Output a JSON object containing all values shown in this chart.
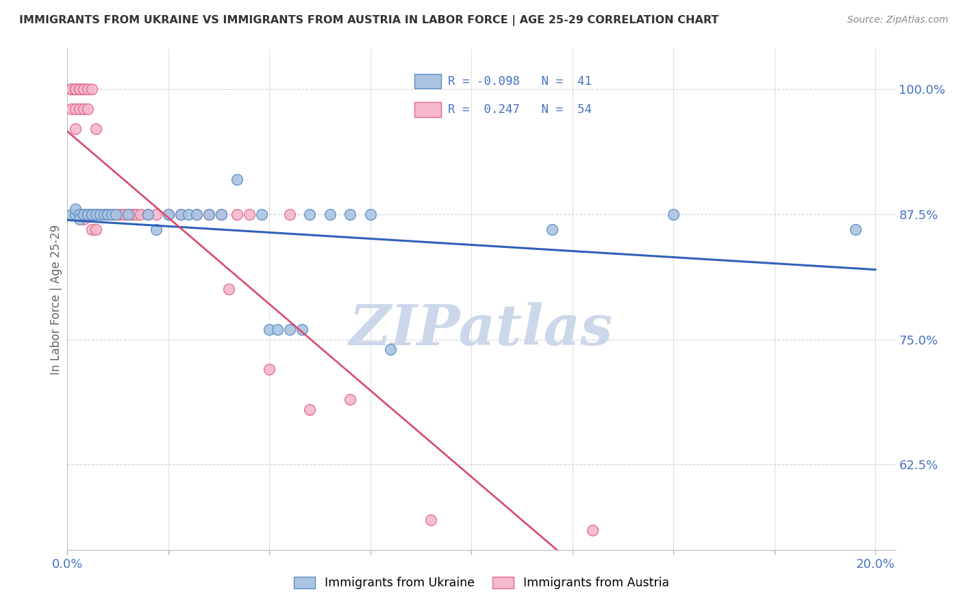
{
  "title": "IMMIGRANTS FROM UKRAINE VS IMMIGRANTS FROM AUSTRIA IN LABOR FORCE | AGE 25-29 CORRELATION CHART",
  "source": "Source: ZipAtlas.com",
  "ylabel": "In Labor Force | Age 25-29",
  "xlim": [
    0.0,
    0.205
  ],
  "ylim": [
    0.54,
    1.04
  ],
  "yticks": [
    0.625,
    0.75,
    0.875,
    1.0
  ],
  "ytick_labels": [
    "62.5%",
    "75.0%",
    "87.5%",
    "100.0%"
  ],
  "xticks": [
    0.0,
    0.025,
    0.05,
    0.075,
    0.1,
    0.125,
    0.15,
    0.175,
    0.2
  ],
  "xtick_labels": [
    "0.0%",
    "",
    "",
    "",
    "",
    "",
    "",
    "",
    "20.0%"
  ],
  "ukraine_color": "#aac4e2",
  "ukraine_edge": "#5b8ec4",
  "austria_color": "#f5b8cc",
  "austria_edge": "#e06888",
  "ukraine_line_color": "#3060b8",
  "austria_line_color": "#d85070",
  "R_ukraine": -0.098,
  "N_ukraine": 41,
  "R_austria": 0.247,
  "N_austria": 54,
  "ukraine_x": [
    0.001,
    0.002,
    0.002,
    0.003,
    0.003,
    0.004,
    0.004,
    0.005,
    0.005,
    0.006,
    0.006,
    0.007,
    0.008,
    0.009,
    0.01,
    0.01,
    0.011,
    0.012,
    0.015,
    0.02,
    0.022,
    0.025,
    0.028,
    0.03,
    0.032,
    0.035,
    0.038,
    0.042,
    0.048,
    0.05,
    0.052,
    0.055,
    0.058,
    0.06,
    0.065,
    0.07,
    0.075,
    0.08,
    0.12,
    0.15,
    0.195
  ],
  "ukraine_y": [
    0.875,
    0.875,
    0.88,
    0.875,
    0.87,
    0.875,
    0.875,
    0.875,
    0.875,
    0.875,
    0.875,
    0.875,
    0.875,
    0.875,
    0.875,
    0.875,
    0.875,
    0.875,
    0.875,
    0.875,
    0.86,
    0.875,
    0.875,
    0.875,
    0.875,
    0.875,
    0.875,
    0.91,
    0.875,
    0.76,
    0.76,
    0.76,
    0.76,
    0.875,
    0.875,
    0.875,
    0.875,
    0.74,
    0.86,
    0.875,
    0.86
  ],
  "austria_x": [
    0.001,
    0.001,
    0.001,
    0.001,
    0.002,
    0.002,
    0.002,
    0.002,
    0.002,
    0.003,
    0.003,
    0.003,
    0.003,
    0.004,
    0.004,
    0.004,
    0.004,
    0.004,
    0.005,
    0.005,
    0.005,
    0.006,
    0.006,
    0.006,
    0.007,
    0.007,
    0.007,
    0.008,
    0.009,
    0.01,
    0.011,
    0.012,
    0.013,
    0.014,
    0.015,
    0.016,
    0.017,
    0.018,
    0.02,
    0.022,
    0.025,
    0.028,
    0.032,
    0.035,
    0.038,
    0.04,
    0.042,
    0.045,
    0.05,
    0.055,
    0.06,
    0.07,
    0.09,
    0.13
  ],
  "austria_y": [
    1.0,
    1.0,
    1.0,
    0.98,
    1.0,
    1.0,
    1.0,
    0.98,
    0.96,
    1.0,
    1.0,
    0.98,
    0.875,
    1.0,
    1.0,
    0.98,
    0.875,
    0.87,
    1.0,
    0.98,
    0.875,
    1.0,
    0.875,
    0.86,
    0.96,
    0.875,
    0.86,
    0.875,
    0.875,
    0.875,
    0.875,
    0.875,
    0.875,
    0.875,
    0.875,
    0.875,
    0.875,
    0.875,
    0.875,
    0.875,
    0.875,
    0.875,
    0.875,
    0.875,
    0.875,
    0.8,
    0.875,
    0.875,
    0.72,
    0.875,
    0.68,
    0.69,
    0.57,
    0.56
  ],
  "watermark_text": "ZIPatlas",
  "watermark_color": "#ccd8ea",
  "background_color": "#ffffff",
  "grid_color": "#d0d0d0",
  "title_color": "#333333",
  "source_color": "#888888",
  "axis_tick_color": "#4472C4",
  "legend_color": "#4472C4",
  "ylabel_color": "#666666"
}
